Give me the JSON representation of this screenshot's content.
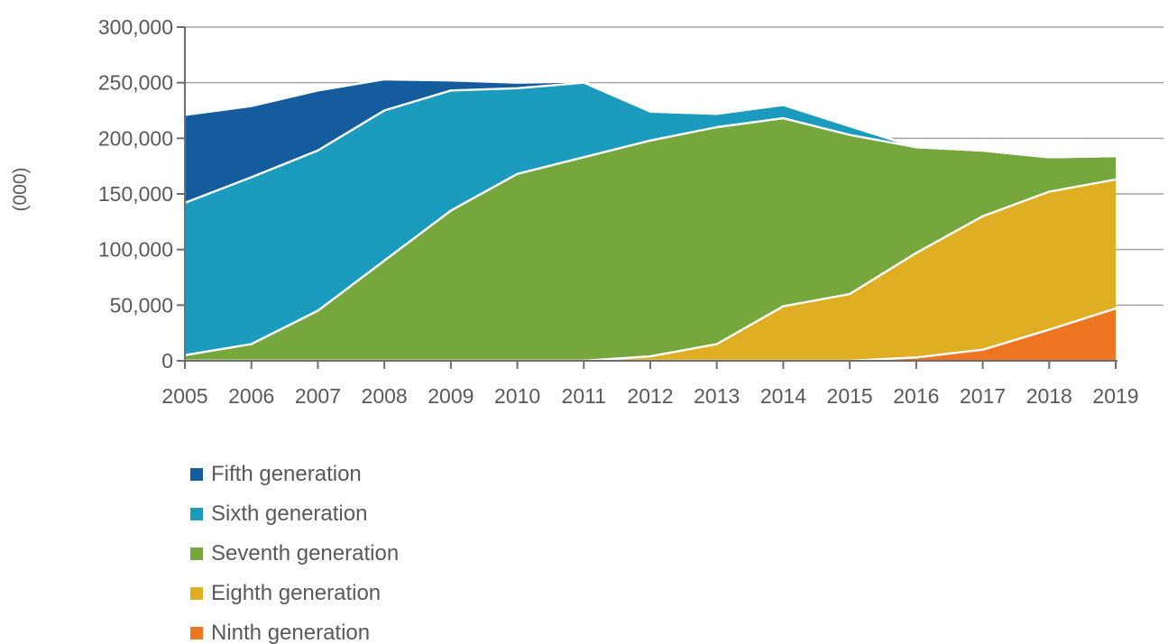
{
  "page": {
    "background": "#ffffff"
  },
  "colors": {
    "text": "#595959",
    "axis": "#6E6E6E",
    "gridline": "#A3A3A3",
    "series_outline": "#FFFFFF"
  },
  "chart_data": {
    "type": "area",
    "stacked": true,
    "title": "",
    "xlabel": "",
    "ylabel": "(000)",
    "grid": true,
    "legend_position": "bottom-left",
    "ylim": [
      0,
      300000
    ],
    "ytick_step": 50000,
    "yticks": [
      {
        "value": 0,
        "label": "0"
      },
      {
        "value": 50000,
        "label": "50,000"
      },
      {
        "value": 100000,
        "label": "100,000"
      },
      {
        "value": 150000,
        "label": "150,000"
      },
      {
        "value": 200000,
        "label": "200,000"
      },
      {
        "value": 250000,
        "label": "250,000"
      },
      {
        "value": 300000,
        "label": "300,000"
      }
    ],
    "categories": [
      "2005",
      "2006",
      "2007",
      "2008",
      "2009",
      "2010",
      "2011",
      "2012",
      "2013",
      "2014",
      "2015",
      "2016",
      "2017",
      "2018",
      "2019"
    ],
    "stack_order_bottom_to_top": [
      "Ninth generation",
      "Eighth generation",
      "Seventh generation",
      "Sixth generation",
      "Fifth generation"
    ],
    "series": [
      {
        "name": "Fifth generation",
        "color": "#155C9E",
        "values": [
          79000,
          64000,
          54000,
          28000,
          9000,
          5000,
          1000,
          0,
          0,
          0,
          0,
          0,
          0,
          0,
          0
        ]
      },
      {
        "name": "Sixth generation",
        "color": "#1B9BBE",
        "values": [
          137000,
          150000,
          144000,
          135000,
          108000,
          77000,
          67000,
          26000,
          12000,
          12000,
          8000,
          0,
          0,
          0,
          0
        ]
      },
      {
        "name": "Seventh generation",
        "color": "#76A73D",
        "values": [
          5000,
          15000,
          45000,
          90000,
          135000,
          168000,
          183000,
          194000,
          195000,
          169000,
          143000,
          95000,
          59000,
          31000,
          21000
        ]
      },
      {
        "name": "Eighth generation",
        "color": "#E0AE22",
        "values": [
          0,
          0,
          0,
          0,
          0,
          0,
          0,
          4000,
          15000,
          49000,
          60000,
          94000,
          120000,
          124000,
          116000
        ]
      },
      {
        "name": "Ninth generation",
        "color": "#EE7521",
        "values": [
          0,
          0,
          0,
          0,
          0,
          0,
          0,
          0,
          0,
          0,
          0,
          3000,
          10000,
          28000,
          47000
        ]
      }
    ]
  },
  "legend": {
    "items": [
      {
        "label": "Fifth generation",
        "color": "#155C9E"
      },
      {
        "label": "Sixth generation",
        "color": "#1B9BBE"
      },
      {
        "label": "Seventh generation",
        "color": "#76A73D"
      },
      {
        "label": "Eighth generation",
        "color": "#E0AE22"
      },
      {
        "label": "Ninth generation",
        "color": "#EE7521"
      }
    ]
  }
}
